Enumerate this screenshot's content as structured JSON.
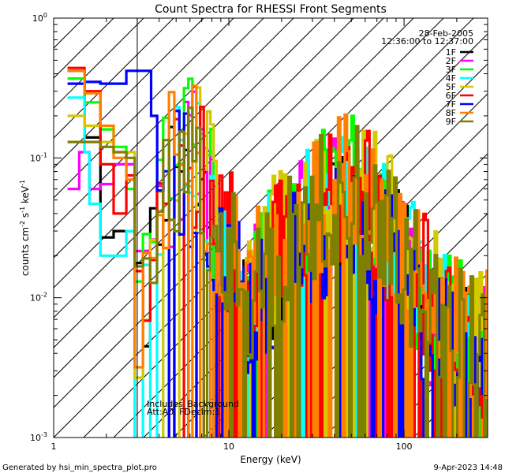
{
  "chart_data": {
    "type": "step-line",
    "title": "Count Spectra for RHESSI Front Segments",
    "xlabel": "Energy (keV)",
    "ylabel_parts": {
      "base": "counts cm",
      "exp1": "-2",
      "mid": " s",
      "exp2": "-1",
      "end": " keV",
      "exp3": "-1"
    },
    "x_scale": "log",
    "y_scale": "log",
    "xlim": [
      1,
      300
    ],
    "ylim": [
      0.001,
      1
    ],
    "x_ticks": [
      {
        "value": 1,
        "label": "1"
      },
      {
        "value": 10,
        "label": "10"
      },
      {
        "value": 100,
        "label": "100"
      }
    ],
    "y_ticks": [
      {
        "value": 0.001,
        "base": "10",
        "exp": "-3"
      },
      {
        "value": 0.01,
        "base": "10",
        "exp": "-2"
      },
      {
        "value": 0.1,
        "base": "10",
        "exp": "-1"
      },
      {
        "value": 1,
        "base": "10",
        "exp": "0"
      }
    ],
    "date": "28-Feb-2005",
    "time_range": "12:36:00 to 12:37:00",
    "hatched_below_kev": 3,
    "annotations": [
      "Includes_Background",
      "Att:A0, FDecim:1"
    ],
    "series": [
      {
        "name": "1F",
        "color": "#000000",
        "low": [
          [
            1.2,
            0.42
          ],
          [
            1.5,
            0.14
          ],
          [
            1.85,
            0.027
          ],
          [
            2.2,
            0.03
          ],
          [
            2.6,
            0.03
          ]
        ],
        "base": 0.003,
        "amp": 4.5,
        "seed": 11
      },
      {
        "name": "2F",
        "color": "#ff00ff",
        "low": [
          [
            1.2,
            0.06
          ],
          [
            1.4,
            0.11
          ],
          [
            1.6,
            0.06
          ],
          [
            1.85,
            0.065
          ],
          [
            2.2,
            0.09
          ],
          [
            2.6,
            0.09
          ]
        ],
        "base": 0.0035,
        "amp": 4.2,
        "seed": 23
      },
      {
        "name": "3F",
        "color": "#00ff00",
        "low": [
          [
            1.2,
            0.37
          ],
          [
            1.5,
            0.25
          ],
          [
            1.85,
            0.16
          ],
          [
            2.2,
            0.12
          ],
          [
            2.6,
            0.06
          ]
        ],
        "base": 0.0045,
        "amp": 4.2,
        "seed": 37
      },
      {
        "name": "4F",
        "color": "#00ffff",
        "low": [
          [
            1.2,
            0.27
          ],
          [
            1.5,
            0.11
          ],
          [
            1.6,
            0.047
          ],
          [
            1.85,
            0.02
          ],
          [
            2.2,
            0.02
          ],
          [
            2.6,
            0.03
          ]
        ],
        "base": 0.004,
        "amp": 4.0,
        "seed": 41
      },
      {
        "name": "5F",
        "color": "#d4c800",
        "low": [
          [
            1.2,
            0.2
          ],
          [
            1.5,
            0.17
          ],
          [
            1.85,
            0.13
          ],
          [
            2.2,
            0.11
          ],
          [
            2.6,
            0.11
          ]
        ],
        "base": 0.0045,
        "amp": 4.2,
        "seed": 53
      },
      {
        "name": "6F",
        "color": "#ff0000",
        "low": [
          [
            1.2,
            0.44
          ],
          [
            1.5,
            0.3
          ],
          [
            1.85,
            0.09
          ],
          [
            2.2,
            0.04
          ],
          [
            2.6,
            0.075
          ]
        ],
        "base": 0.0045,
        "amp": 4.0,
        "seed": 67
      },
      {
        "name": "7F",
        "color": "#0000ff",
        "low": [
          [
            1.2,
            0.34
          ],
          [
            1.5,
            0.35
          ],
          [
            1.85,
            0.34
          ],
          [
            2.2,
            0.34
          ],
          [
            2.6,
            0.42
          ],
          [
            3.6,
            0.2
          ]
        ],
        "base": 0.0025,
        "amp": 4.5,
        "seed": 79
      },
      {
        "name": "8F",
        "color": "#ff8000",
        "low": [
          [
            1.2,
            0.42
          ],
          [
            1.5,
            0.29
          ],
          [
            1.85,
            0.17
          ],
          [
            2.2,
            0.1
          ],
          [
            2.6,
            0.07
          ]
        ],
        "base": 0.0045,
        "amp": 4.0,
        "seed": 83
      },
      {
        "name": "9F",
        "color": "#808000",
        "low": [
          [
            1.2,
            0.13
          ],
          [
            1.5,
            0.13
          ],
          [
            1.85,
            0.12
          ],
          [
            2.2,
            0.11
          ],
          [
            2.6,
            0.1
          ]
        ],
        "base": 0.004,
        "amp": 4.0,
        "seed": 97
      }
    ]
  },
  "footer": {
    "generated_by": "Generated by hsi_min_spectra_plot.pro",
    "timestamp": "9-Apr-2023 14:48"
  }
}
